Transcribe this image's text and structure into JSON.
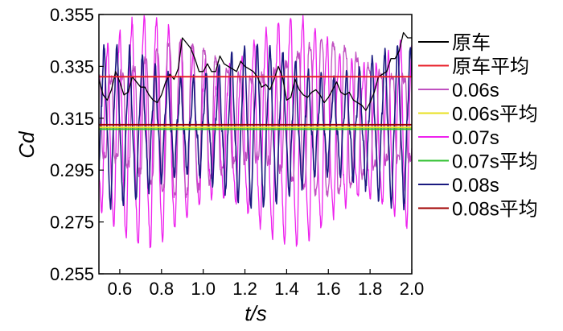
{
  "chart_data": {
    "type": "line",
    "title": "",
    "xlabel": "t/s",
    "ylabel": "Cd",
    "xlim": [
      0.5,
      2.0
    ],
    "ylim": [
      0.255,
      0.355
    ],
    "xticks": [
      "0.6",
      "0.8",
      "1.0",
      "1.2",
      "1.4",
      "1.6",
      "1.8",
      "2.0"
    ],
    "yticks": [
      "0.255",
      "0.275",
      "0.295",
      "0.315",
      "0.335",
      "0.355"
    ],
    "legend_position": "right",
    "grid": false,
    "series": [
      {
        "name": "原车",
        "color": "#000000",
        "x": [
          0.5,
          0.52,
          0.54,
          0.56,
          0.58,
          0.6,
          0.62,
          0.64,
          0.66,
          0.68,
          0.7,
          0.72,
          0.74,
          0.76,
          0.78,
          0.8,
          0.82,
          0.84,
          0.86,
          0.88,
          0.9,
          0.92,
          0.94,
          0.96,
          0.98,
          1.0,
          1.02,
          1.04,
          1.06,
          1.08,
          1.1,
          1.12,
          1.14,
          1.16,
          1.18,
          1.2,
          1.22,
          1.24,
          1.26,
          1.28,
          1.3,
          1.32,
          1.34,
          1.36,
          1.38,
          1.4,
          1.42,
          1.44,
          1.46,
          1.48,
          1.5,
          1.52,
          1.54,
          1.56,
          1.58,
          1.6,
          1.62,
          1.64,
          1.66,
          1.68,
          1.7,
          1.72,
          1.74,
          1.76,
          1.78,
          1.8,
          1.82,
          1.84,
          1.86,
          1.88,
          1.9,
          1.92,
          1.94,
          1.96,
          1.98,
          2.0
        ],
        "y": [
          0.33,
          0.324,
          0.322,
          0.326,
          0.333,
          0.329,
          0.324,
          0.325,
          0.331,
          0.329,
          0.327,
          0.327,
          0.324,
          0.322,
          0.321,
          0.324,
          0.329,
          0.332,
          0.33,
          0.334,
          0.346,
          0.344,
          0.342,
          0.338,
          0.333,
          0.333,
          0.336,
          0.333,
          0.333,
          0.339,
          0.336,
          0.335,
          0.334,
          0.333,
          0.337,
          0.335,
          0.334,
          0.333,
          0.331,
          0.327,
          0.328,
          0.326,
          0.33,
          0.335,
          0.331,
          0.322,
          0.323,
          0.33,
          0.326,
          0.324,
          0.323,
          0.325,
          0.326,
          0.324,
          0.321,
          0.323,
          0.326,
          0.329,
          0.325,
          0.324,
          0.325,
          0.322,
          0.321,
          0.32,
          0.318,
          0.321,
          0.325,
          0.331,
          0.332,
          0.333,
          0.338,
          0.338,
          0.341,
          0.348,
          0.346,
          0.346
        ]
      },
      {
        "name": "原车平均",
        "color": "#e8202a",
        "y": [
          0.331
        ]
      },
      {
        "name": "0.06s",
        "color": "#c050c0",
        "mean": 0.315,
        "amplitude": 0.03,
        "period": 0.0563
      },
      {
        "name": "0.06s平均",
        "color": "#e8e020",
        "y": [
          0.3115
        ]
      },
      {
        "name": "0.07s",
        "color": "#ee22ee",
        "mean": 0.31,
        "amplitude": 0.04,
        "period": 0.0585
      },
      {
        "name": "0.07s平均",
        "color": "#30c030",
        "y": [
          0.3108
        ]
      },
      {
        "name": "0.08s",
        "color": "#1a1a80",
        "mean": 0.312,
        "amplitude": 0.025,
        "period": 0.0612
      },
      {
        "name": "0.08s平均",
        "color": "#a00000",
        "y": [
          0.3125
        ]
      }
    ]
  }
}
